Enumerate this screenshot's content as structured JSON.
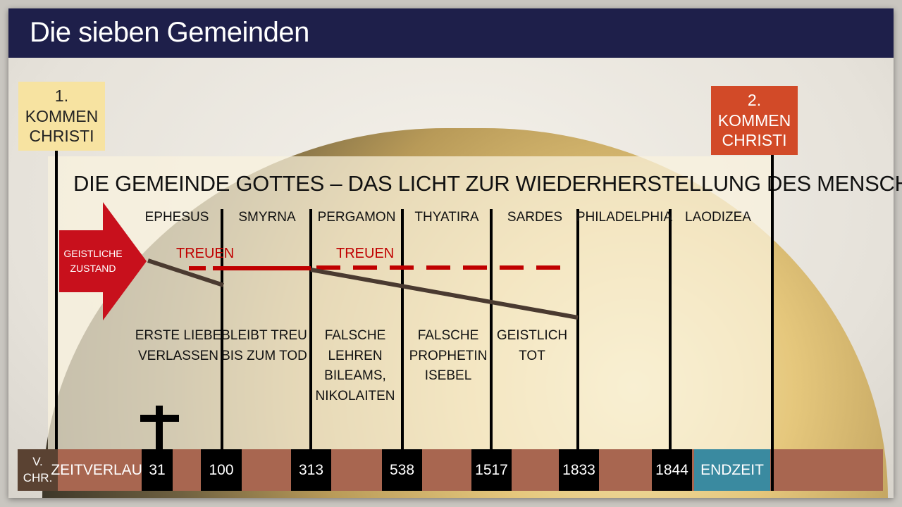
{
  "title": "Die sieben Gemeinden",
  "first_coming": "1. KOMMEN CHRISTI",
  "second_coming": "2. KOMMEN CHRISTI",
  "heading": "DIE GEMEINDE GOTTES – DAS LICHT ZUR WIEDERHERSTELLUNG DES MENSCHEN",
  "arrow_label": "GEISTLICHE ZUSTAND",
  "faithful_label_1": "TREUEN",
  "faithful_label_2": "TREUEN",
  "churches": [
    "EPHESUS",
    "SMYRNA",
    "PERGAMON",
    "THYATIRA",
    "SARDES",
    "PHILADELPHIA",
    "LAODIZEA"
  ],
  "descriptions": [
    "ERSTE LIEBE\nVERLASSEN",
    "BLEIBT TREU\nBIS ZUM TOD",
    "FALSCHE\nLEHREN\nBILEAMS,\nNIKOLAITEN",
    "FALSCHE\nPROPHETIN\nISEBEL",
    "GEISTLICH\nTOT"
  ],
  "timeline": {
    "bc": "V. CHR.",
    "label": "ZEITVERLAUF",
    "years": [
      "31",
      "100",
      "313",
      "538",
      "1517",
      "1833",
      "1844"
    ],
    "end": "ENDZEIT"
  },
  "icons": {
    "cross": "cross-icon"
  },
  "colors": {
    "title_bar": "#1e1f4a",
    "first_coming": "#f7e3a1",
    "second_coming": "#d24a28",
    "arrow": "#c8101c",
    "timeline": "#a86650",
    "endzeit": "#3a8aa0",
    "faithful_line": "#c00000",
    "decline_line": "#4a3a30"
  }
}
